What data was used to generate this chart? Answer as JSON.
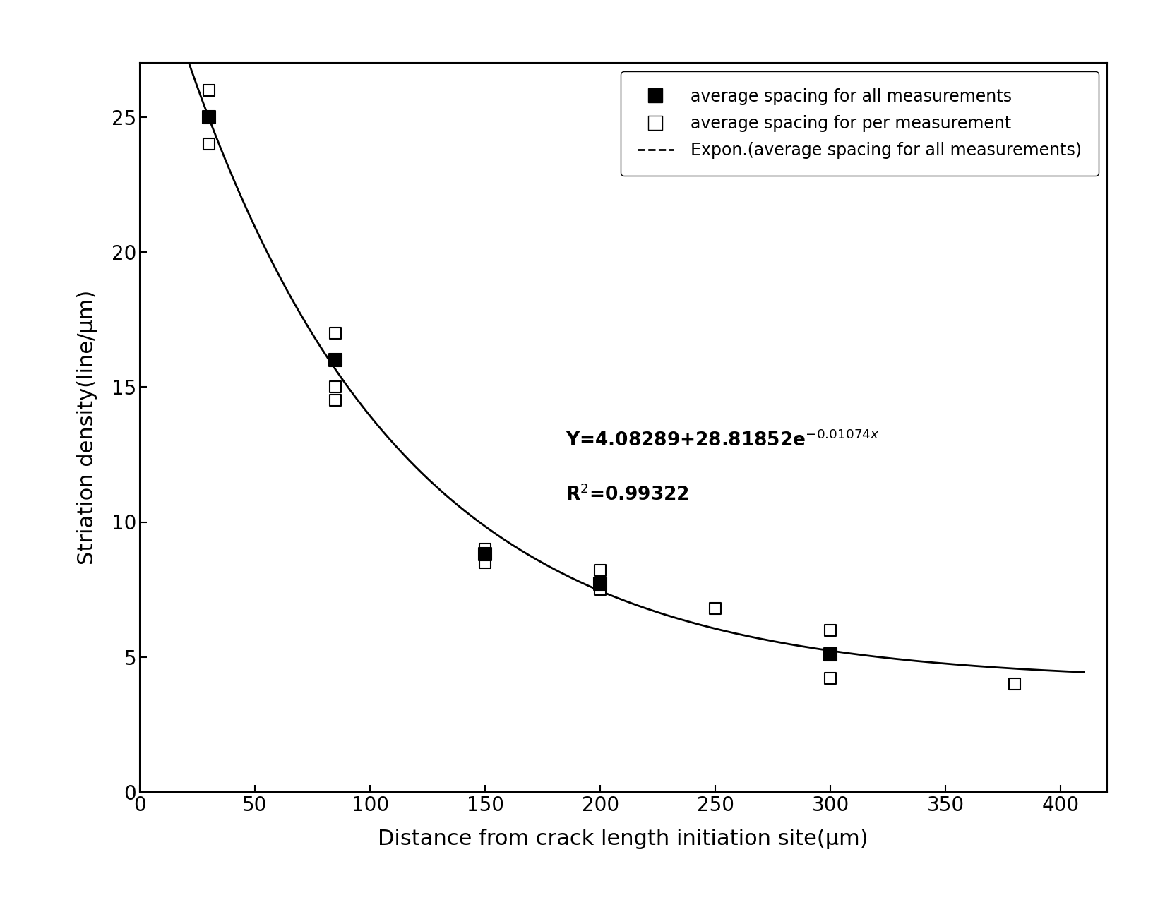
{
  "avg_x": [
    30,
    85,
    150,
    200,
    300
  ],
  "avg_y": [
    25.0,
    16.0,
    8.8,
    7.7,
    5.1
  ],
  "per_x": [
    30,
    30,
    85,
    85,
    85,
    150,
    150,
    200,
    200,
    250,
    300,
    300,
    380
  ],
  "per_y": [
    26.0,
    24.0,
    17.0,
    14.5,
    15.0,
    9.0,
    8.5,
    8.2,
    7.5,
    6.8,
    6.0,
    4.2,
    4.0
  ],
  "fit_a": 4.08289,
  "fit_b": 28.81852,
  "fit_c": -0.01074,
  "xlabel": "Distance from crack length initiation site(μm)",
  "ylabel": "Striation density(line/μm)",
  "xlim": [
    0,
    420
  ],
  "ylim": [
    0,
    27
  ],
  "xticks": [
    0,
    50,
    100,
    150,
    200,
    250,
    300,
    350,
    400
  ],
  "yticks": [
    0,
    5,
    10,
    15,
    20,
    25
  ],
  "legend_label_filled": "average spacing for all measurements",
  "legend_label_open": "average spacing for per measurement",
  "legend_label_line": "Expon.(average spacing for all measurements)",
  "bg_color": "#ffffff",
  "line_color": "#000000",
  "marker_color": "#000000",
  "equation_x": 185,
  "equation_y": 12.8,
  "r2_x": 185,
  "r2_y": 10.8
}
